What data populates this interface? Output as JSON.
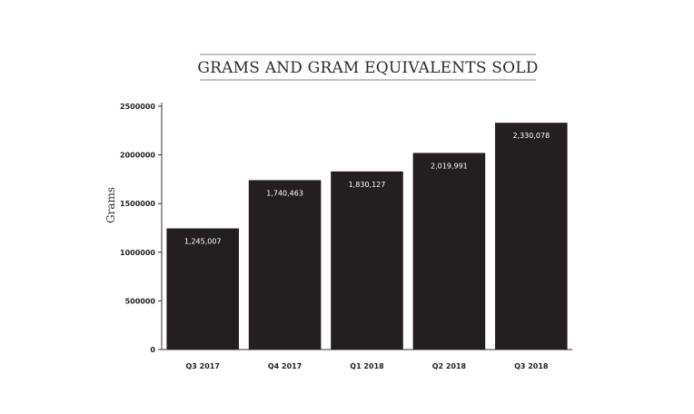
{
  "chart_data": {
    "type": "bar",
    "title": "GRAMS AND GRAM EQUIVALENTS SOLD",
    "xlabel": "",
    "ylabel": "Grams",
    "categories": [
      "Q3 2017",
      "Q4 2017",
      "Q1 2018",
      "Q2 2018",
      "Q3 2018"
    ],
    "values": [
      1245007,
      1740463,
      1830127,
      2019991,
      2330078
    ],
    "data_labels": [
      "1,245,007",
      "1,740,463",
      "1,830,127",
      "2,019,991",
      "2,330,078"
    ],
    "ylim": [
      0,
      2500000
    ],
    "yticks": [
      0,
      500000,
      1000000,
      1500000,
      2000000,
      2500000
    ],
    "ytick_labels": [
      "0",
      "500000",
      "1000000",
      "1500000",
      "2000000",
      "2500000"
    ],
    "grid": false,
    "bar_color": "#231f20"
  }
}
